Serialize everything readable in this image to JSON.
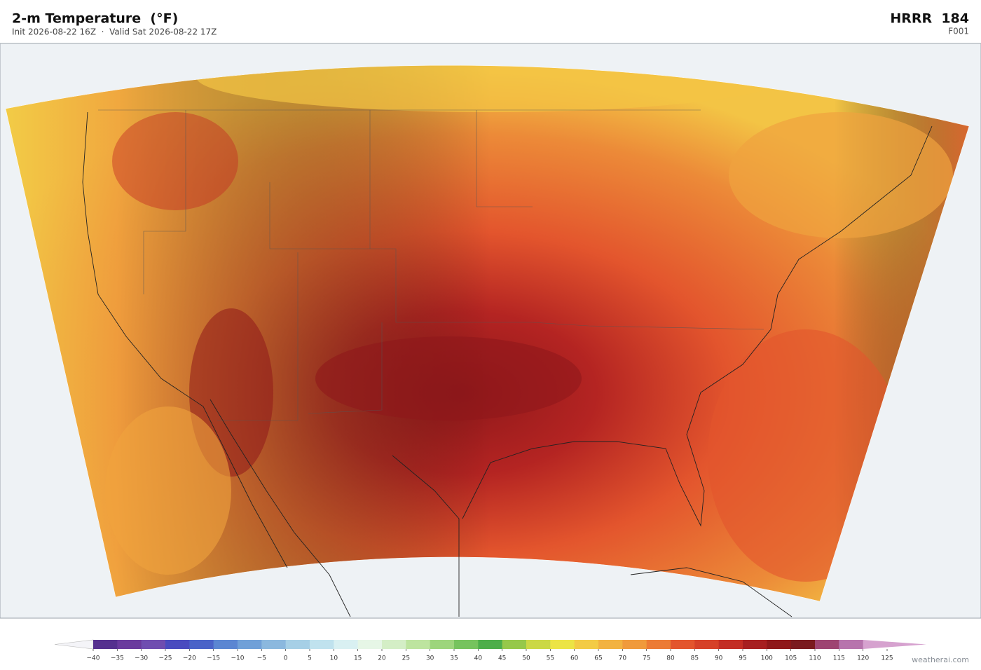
{
  "header": {
    "title": "2-m Temperature  (°F)",
    "subtitle": "Init 2026-08-22 16Z  ·  Valid Sat 2026-08-22 17Z",
    "model": "HRRR  184",
    "forecast_hour": "F001"
  },
  "colorbar": {
    "ticks": [
      {
        "value": -40,
        "label": "−40"
      },
      {
        "value": -35,
        "label": "−35"
      },
      {
        "value": -30,
        "label": "−30"
      },
      {
        "value": -25,
        "label": "−25"
      },
      {
        "value": -20,
        "label": "−20"
      },
      {
        "value": -15,
        "label": "−15"
      },
      {
        "value": -10,
        "label": "−10"
      },
      {
        "value": -5,
        "label": "−5"
      },
      0,
      5,
      10,
      15,
      20,
      25,
      30,
      35,
      40,
      45,
      50,
      55,
      60,
      65,
      70,
      75,
      80,
      85,
      90,
      95,
      100,
      105,
      110,
      115,
      120,
      125
    ],
    "colors": [
      "#55308f",
      "#6a3a9e",
      "#6f4db0",
      "#4a4bbf",
      "#4a63c8",
      "#5b86d2",
      "#70a0d8",
      "#8bb8de",
      "#a6cfe6",
      "#c0e2ee",
      "#d9f0f2",
      "#e6f6e6",
      "#d4eec6",
      "#bde49f",
      "#9dd57c",
      "#76c35e",
      "#4dae4a",
      "#96c84a",
      "#cbd845",
      "#ece445",
      "#f3cb45",
      "#f2b241",
      "#f09a3c",
      "#ec7b35",
      "#e3552d",
      "#d64128",
      "#c32d24",
      "#a71f20",
      "#8f181a",
      "#7a1a1f",
      "#9e4472",
      "#b774ad"
    ],
    "under_color": "#f4f4f8",
    "over_color": "#d6a2cf"
  },
  "footer": {
    "credit": "weatherai.com"
  }
}
